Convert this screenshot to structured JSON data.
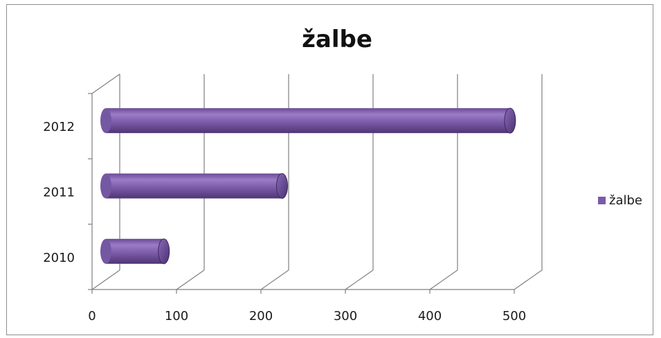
{
  "chart_data": {
    "type": "bar",
    "orientation": "horizontal",
    "style": "3d-cylinder",
    "title": "žalbe",
    "categories": [
      "2010",
      "2011",
      "2012"
    ],
    "series": [
      {
        "name": "žalbe",
        "values": [
          85,
          225,
          495
        ],
        "color": "#7b5ba6"
      }
    ],
    "xlim": [
      0,
      500
    ],
    "x_ticks": [
      "0",
      "100",
      "200",
      "300",
      "400",
      "500"
    ],
    "grid": true,
    "legend": "right"
  }
}
